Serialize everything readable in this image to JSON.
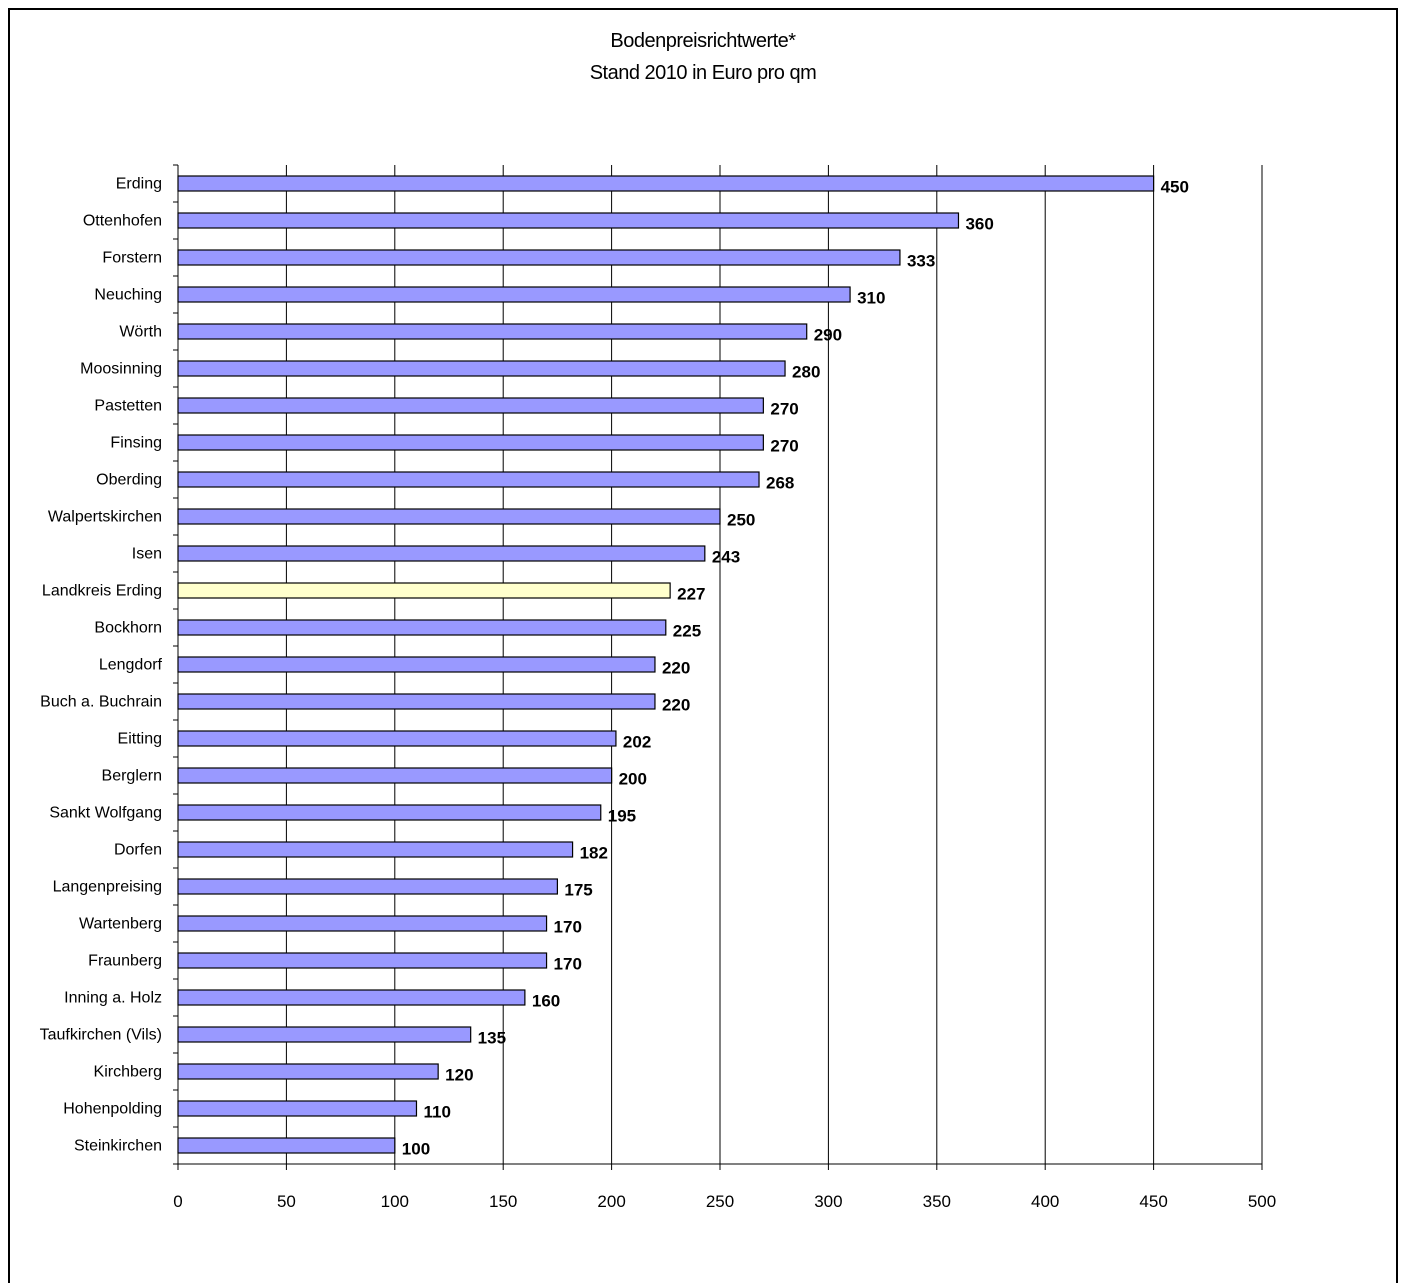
{
  "chart_data": {
    "type": "bar",
    "orientation": "horizontal",
    "title": "Bodenpreisrichtwerte*",
    "subtitle": "Stand 2010 in Euro pro qm",
    "categories": [
      "Erding",
      "Ottenhofen",
      "Forstern",
      "Neuching",
      "Wörth",
      "Moosinning",
      "Pastetten",
      "Finsing",
      "Oberding",
      "Walpertskirchen",
      "Isen",
      "Landkreis Erding",
      "Bockhorn",
      "Lengdorf",
      "Buch a. Buchrain",
      "Eitting",
      "Berglern",
      "Sankt Wolfgang",
      "Dorfen",
      "Langenpreising",
      "Wartenberg",
      "Fraunberg",
      "Inning a. Holz",
      "Taufkirchen (Vils)",
      "Kirchberg",
      "Hohenpolding",
      "Steinkirchen"
    ],
    "values": [
      450,
      360,
      333,
      310,
      290,
      280,
      270,
      270,
      268,
      250,
      243,
      227,
      225,
      220,
      220,
      202,
      200,
      195,
      182,
      175,
      170,
      170,
      160,
      135,
      120,
      110,
      100
    ],
    "highlight_category": "Landkreis Erding",
    "xlim": [
      0,
      500
    ],
    "xticks": [
      0,
      50,
      100,
      150,
      200,
      250,
      300,
      350,
      400,
      450,
      500
    ],
    "grid": true,
    "legend": "none",
    "colors": {
      "bar": "#9999ff",
      "highlight": "#ffffcc",
      "outline": "#000000",
      "grid": "#000000"
    }
  }
}
